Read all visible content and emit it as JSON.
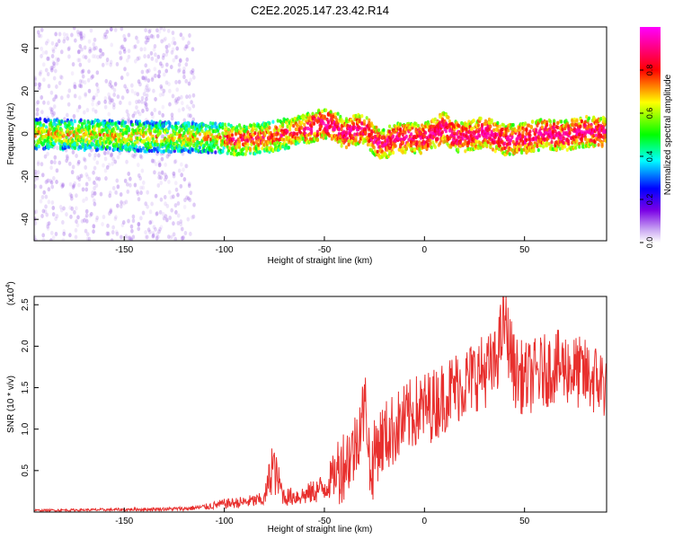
{
  "title": "C2E2.2025.147.23.42.R14",
  "chart_data": [
    {
      "type": "heatmap",
      "xlabel": "Height of straight line (km)",
      "ylabel": "Frequency (Hz)",
      "xlim": [
        -195,
        91
      ],
      "ylim": [
        -50,
        50
      ],
      "x_ticks": [
        -150,
        -100,
        -50,
        0,
        50
      ],
      "y_ticks": [
        -40,
        -20,
        0,
        20,
        40
      ],
      "colorbar": {
        "label": "Normalized spectral amplitude",
        "range": [
          0.0,
          1.0
        ],
        "ticks": [
          "0.0",
          "0.2",
          "0.4",
          "0.6",
          "0.8"
        ],
        "tick_values": [
          0.0,
          0.2,
          0.4,
          0.6,
          0.8
        ],
        "colormap": "rainbow"
      },
      "ridge_center_hz": [
        [
          -195,
          0
        ],
        [
          -150,
          -1
        ],
        [
          -100,
          -2
        ],
        [
          -95,
          -3
        ],
        [
          -80,
          -2
        ],
        [
          -60,
          2
        ],
        [
          -50,
          5
        ],
        [
          -45,
          4
        ],
        [
          -40,
          0
        ],
        [
          -30,
          3
        ],
        [
          -25,
          -3
        ],
        [
          -20,
          -5
        ],
        [
          -15,
          -2
        ],
        [
          0,
          -2
        ],
        [
          10,
          3
        ],
        [
          15,
          -1
        ],
        [
          20,
          -2
        ],
        [
          30,
          1
        ],
        [
          35,
          -1
        ],
        [
          40,
          -3
        ],
        [
          50,
          -2
        ],
        [
          60,
          0
        ],
        [
          70,
          -1
        ],
        [
          80,
          1
        ],
        [
          91,
          1
        ]
      ]
    },
    {
      "type": "line",
      "xlabel": "Height of straight line (km)",
      "ylabel": "SNR (10 * v/v)",
      "y_multiplier": "(x10^4)",
      "xlim": [
        -195,
        91
      ],
      "ylim": [
        0,
        2.6
      ],
      "x_ticks": [
        -150,
        -100,
        -50,
        0,
        50
      ],
      "y_ticks": [
        0.5,
        1.0,
        1.5,
        2.0,
        2.5
      ],
      "series": [
        {
          "color": "#e8302e",
          "x": [
            -195,
            -150,
            -120,
            -110,
            -100,
            -90,
            -80,
            -76,
            -70,
            -60,
            -55,
            -50,
            -45,
            -40,
            -35,
            -32,
            -29,
            -27,
            -24,
            -20,
            -15,
            -10,
            -5,
            0,
            5,
            10,
            15,
            20,
            25,
            30,
            35,
            40,
            45,
            50,
            55,
            60,
            65,
            70,
            75,
            80,
            85,
            91
          ],
          "y": [
            0.02,
            0.03,
            0.04,
            0.06,
            0.1,
            0.12,
            0.15,
            0.55,
            0.18,
            0.2,
            0.25,
            0.3,
            0.45,
            0.6,
            0.75,
            1.1,
            1.3,
            0.4,
            0.8,
            0.9,
            1.0,
            1.1,
            1.2,
            1.25,
            1.3,
            1.4,
            1.5,
            1.55,
            1.65,
            1.7,
            1.75,
            2.3,
            1.7,
            1.6,
            1.65,
            1.7,
            1.75,
            1.75,
            1.7,
            1.65,
            1.6,
            1.55
          ]
        }
      ]
    }
  ]
}
